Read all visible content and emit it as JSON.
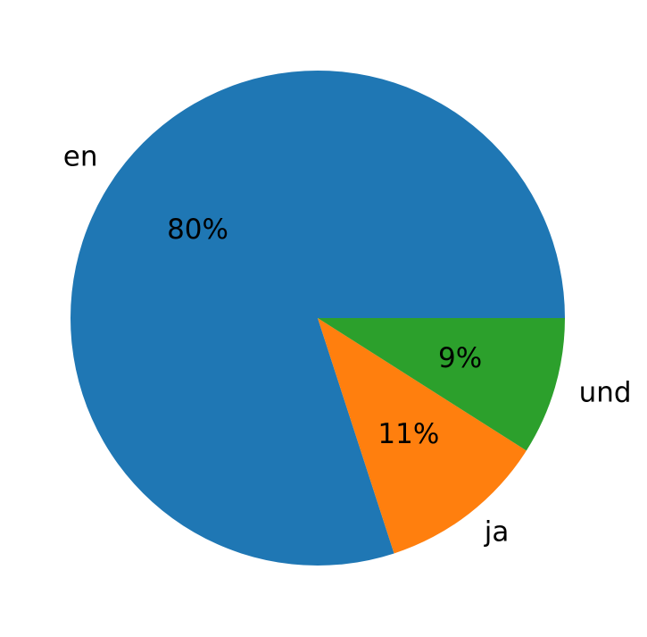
{
  "chart_data": {
    "type": "pie",
    "categories": [
      "en",
      "ja",
      "und"
    ],
    "values": [
      80,
      11,
      9
    ],
    "value_labels": [
      "80%",
      "11%",
      "9%"
    ],
    "colors": [
      "#1f77b4",
      "#ff7f0e",
      "#2ca02c"
    ]
  }
}
